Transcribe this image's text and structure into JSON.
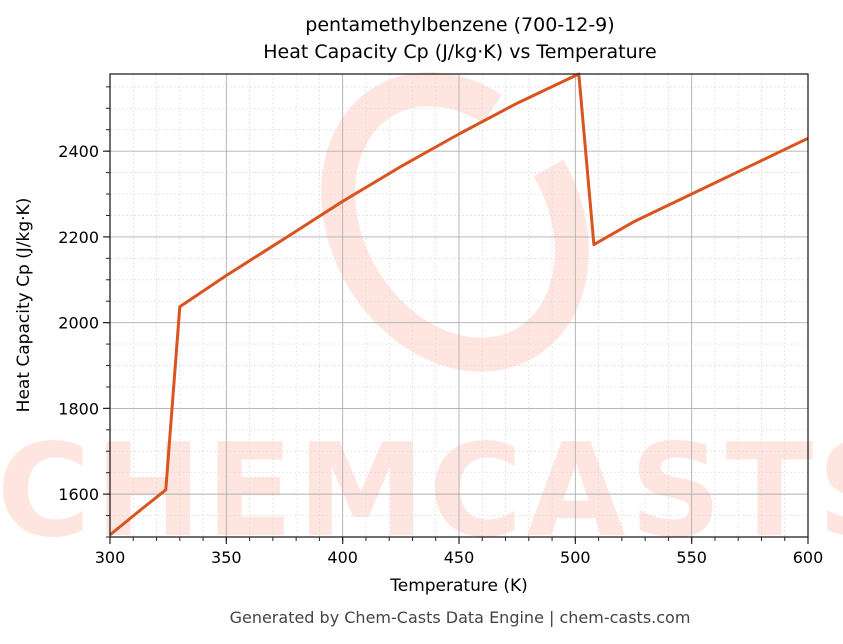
{
  "chart_data": {
    "type": "line",
    "title": "pentamethylbenzene (700-12-9)",
    "subtitle": "Heat Capacity Cp (J/kg·K) vs Temperature",
    "xlabel": "Temperature (K)",
    "ylabel": "Heat Capacity Cp (J/kg·K)",
    "xlim": [
      300,
      600
    ],
    "ylim": [
      1500,
      2580
    ],
    "x_ticks": [
      300,
      350,
      400,
      450,
      500,
      550,
      600
    ],
    "y_ticks": [
      1600,
      1800,
      2000,
      2200,
      2400
    ],
    "grid": true,
    "legend": null,
    "series": [
      {
        "name": "Cp",
        "color": "#d9541e",
        "x": [
          300,
          312,
          324,
          330,
          350,
          375,
          400,
          425,
          450,
          475,
          501.5,
          508,
          525,
          550,
          575,
          600
        ],
        "values": [
          1505,
          1558,
          1610,
          2037,
          2110,
          2196,
          2283,
          2364,
          2440,
          2512,
          2580,
          2182,
          2235,
          2300,
          2365,
          2430
        ]
      }
    ]
  },
  "footer": "Generated by Chem-Casts Data Engine | chem-casts.com",
  "watermark": "CHEMCASTS"
}
